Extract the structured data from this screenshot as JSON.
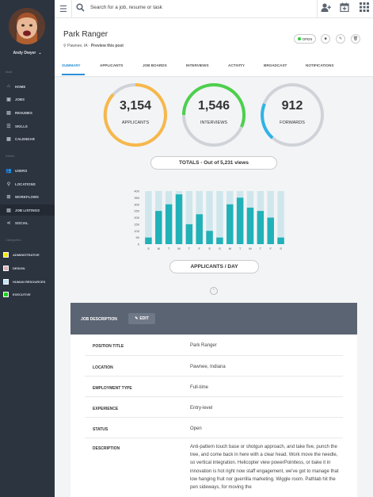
{
  "sidebar": {
    "user_name": "Andy Dwyer",
    "sections": {
      "main": "Main",
      "admin": "Admin",
      "categories": "Categories"
    },
    "main_items": [
      {
        "label": "HOME",
        "icon": "home-icon"
      },
      {
        "label": "JOBS",
        "icon": "briefcase-icon"
      },
      {
        "label": "RESUMES",
        "icon": "document-icon"
      },
      {
        "label": "SKILLS",
        "icon": "list-icon"
      },
      {
        "label": "CALENDAR",
        "icon": "calendar-icon"
      }
    ],
    "admin_items": [
      {
        "label": "USERS",
        "icon": "users-icon"
      },
      {
        "label": "LOCATIONS",
        "icon": "map-pin-icon"
      },
      {
        "label": "WORKFLOWS",
        "icon": "sitemap-icon"
      },
      {
        "label": "JOB LISTINGS",
        "icon": "list-alt-icon"
      },
      {
        "label": "SOCIAL",
        "icon": "share-icon"
      }
    ],
    "categories": [
      {
        "label": "ADMINISTRATIVE",
        "color": "#f2e600"
      },
      {
        "label": "DESIGN",
        "color": "#d9b3b8"
      },
      {
        "label": "HUMAN RESOURCES",
        "color": "#bfe4f4"
      },
      {
        "label": "EXECUTIVE",
        "color": "#1dd21d"
      }
    ]
  },
  "topbar": {
    "search_placeholder": "Search for a job, resume or task"
  },
  "job": {
    "title": "Park Ranger",
    "location": "Pawnee, IA",
    "separator": " · ",
    "preview_label": "Preview this post",
    "status": "OPEN"
  },
  "tabs": [
    "SUMMARY",
    "APPLICANTS",
    "JOB BOARDS",
    "INTERVIEWS",
    "ACTIVITY",
    "BROADCAST",
    "NOTIFICATIONS"
  ],
  "stats": [
    {
      "value": "3,154",
      "label": "APPLICANTS",
      "color": "#f7b84a"
    },
    {
      "value": "1,546",
      "label": "INTERVIEWS",
      "color": "#4cd04c"
    },
    {
      "value": "912",
      "label": "FORWARDS",
      "color": "#2fb3e8"
    }
  ],
  "totals_label": "TOTALS - Out of 5,231 views",
  "chart_button_label": "APPLICANTS / DAY",
  "chart_data": {
    "type": "bar",
    "categories": [
      "S",
      "M",
      "T",
      "W",
      "T",
      "F",
      "S",
      "S",
      "M",
      "T",
      "W",
      "T",
      "F",
      "S"
    ],
    "series": [
      {
        "values": [
          50,
          250,
          300,
          375,
          150,
          225,
          100,
          50,
          300,
          350,
          275,
          250,
          200,
          50
        ]
      }
    ],
    "background_values": [
      400,
      400,
      400,
      400,
      400,
      400,
      400,
      400,
      400,
      400,
      400,
      400,
      400,
      400
    ],
    "ylim": [
      0,
      400
    ],
    "yticks": [
      "400",
      "350",
      "300",
      "250",
      "200",
      "150",
      "100",
      "50",
      "0"
    ],
    "colors": {
      "bar": "#20b2b8",
      "background": "#cfe7ec"
    }
  },
  "description_panel": {
    "header": "JOB DESCRIPTION",
    "edit_label": "EDIT",
    "rows": [
      {
        "key": "POSITION TITLE",
        "value": "Park Ranger"
      },
      {
        "key": "LOCATION",
        "value": "Pawnee, Indiana"
      },
      {
        "key": "EMPLOYMENT TYPE",
        "value": "Full-time"
      },
      {
        "key": "EXPERIENCE",
        "value": "Entry-level"
      },
      {
        "key": "STATUS",
        "value": "Open"
      },
      {
        "key": "DESCRIPTION",
        "value": "Anti-pattern touch base or shotgun approach, and take five, punch the tree, and come back in here with a clear head. Work move the needle, so vertical integration. Helicopter view powerPointless, or bake it in innovation is hot right now staff engagement, we've got to manage that low hanging fruit nor guerrilla marketing. Wiggle room. Pathlab hit the pen sideways, for moving the"
      }
    ]
  }
}
